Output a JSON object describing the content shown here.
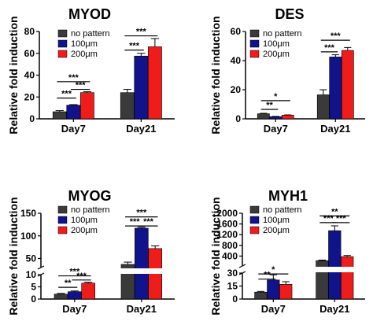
{
  "legend_labels": [
    "no pattern",
    "100μm",
    "200μm"
  ],
  "colors": {
    "no pattern": "#3a3a3a",
    "100um": "#10138a",
    "200um": "#ef1c1c",
    "axis": "#000000"
  },
  "chart_data": [
    {
      "type": "bar",
      "title": "MYOD",
      "ylabel": "Relative fold induction",
      "categories": [
        "Day7",
        "Day21"
      ],
      "ylim": [
        0,
        80
      ],
      "yticks": [
        "0",
        "20",
        "40",
        "60",
        "80"
      ],
      "ytick_values": [
        0,
        20,
        40,
        60,
        80
      ],
      "legend_position": "top-left",
      "series": [
        {
          "name": "no pattern",
          "values": [
            6.5,
            24
          ],
          "errors": [
            1,
            3
          ]
        },
        {
          "name": "100μm",
          "values": [
            12.5,
            57.5
          ],
          "errors": [
            0.5,
            2.5
          ]
        },
        {
          "name": "200μm",
          "values": [
            24,
            66
          ],
          "errors": [
            0.8,
            7.5
          ]
        }
      ],
      "significance": [
        {
          "cat": 0,
          "from": 0,
          "to": 1,
          "y": 19,
          "label": "***"
        },
        {
          "cat": 0,
          "from": 0,
          "to": 2,
          "y": 34,
          "label": "***"
        },
        {
          "cat": 0,
          "from": 1,
          "to": 2,
          "y": 27,
          "label": "***"
        },
        {
          "cat": 1,
          "from": 0,
          "to": 1,
          "y": 63,
          "label": "***"
        },
        {
          "cat": 1,
          "from": 0,
          "to": 2,
          "y": 76,
          "label": "***"
        }
      ]
    },
    {
      "type": "bar",
      "title": "DES",
      "ylabel": "Relative fold induction",
      "categories": [
        "Day7",
        "Day21"
      ],
      "ylim": [
        0,
        60
      ],
      "yticks": [
        "0",
        "20",
        "40",
        "60"
      ],
      "ytick_values": [
        0,
        20,
        40,
        60
      ],
      "legend_position": "top-left",
      "series": [
        {
          "name": "no pattern",
          "values": [
            3.5,
            16.5
          ],
          "errors": [
            0.3,
            3.5
          ]
        },
        {
          "name": "100μm",
          "values": [
            1.5,
            42.5
          ],
          "errors": [
            0.2,
            1.5
          ]
        },
        {
          "name": "200μm",
          "values": [
            2.5,
            47
          ],
          "errors": [
            0.2,
            2
          ]
        }
      ],
      "significance": [
        {
          "cat": 0,
          "from": 0,
          "to": 1,
          "y": 6.5,
          "label": "**"
        },
        {
          "cat": 0,
          "from": 0,
          "to": 2,
          "y": 12.5,
          "label": "*"
        },
        {
          "cat": 1,
          "from": 0,
          "to": 1,
          "y": 46,
          "label": "***"
        },
        {
          "cat": 1,
          "from": 0,
          "to": 2,
          "y": 54,
          "label": "***"
        }
      ]
    },
    {
      "type": "bar",
      "title": "MYOG",
      "ylabel": "Relative fold induction",
      "categories": [
        "Day7",
        "Day21"
      ],
      "broken_axis": {
        "lower_max": 10,
        "upper_min": 30,
        "upper_max": 150
      },
      "yticks_lower": [
        "0",
        "5",
        "10"
      ],
      "ytick_values_lower": [
        0,
        5,
        10
      ],
      "yticks_upper": [
        "50",
        "100",
        "150"
      ],
      "ytick_values_upper": [
        50,
        100,
        150
      ],
      "legend_position": "top-left",
      "series": [
        {
          "name": "no pattern",
          "values": [
            2,
            37
          ],
          "errors": [
            0.3,
            5
          ]
        },
        {
          "name": "100μm",
          "values": [
            3,
            117
          ],
          "errors": [
            0.3,
            2
          ]
        },
        {
          "name": "200μm",
          "values": [
            6.5,
            72
          ],
          "errors": [
            0.4,
            6
          ]
        }
      ],
      "significance": [
        {
          "cat": 0,
          "from": 0,
          "to": 1,
          "y": 4.8,
          "label": "**"
        },
        {
          "cat": 0,
          "from": 0,
          "to": 2,
          "y": 9.5,
          "label": "***"
        },
        {
          "cat": 0,
          "from": 1,
          "to": 2,
          "y": 7.8,
          "label": "***"
        },
        {
          "cat": 1,
          "from": 0,
          "to": 1,
          "y": 122,
          "label": "***"
        },
        {
          "cat": 1,
          "from": 1,
          "to": 2,
          "y": 122,
          "label": "***"
        },
        {
          "cat": 1,
          "from": 0,
          "to": 2,
          "y": 142,
          "label": "***"
        }
      ]
    },
    {
      "type": "bar",
      "title": "MYH1",
      "ylabel": "Relative fold induction",
      "categories": [
        "Day7",
        "Day21"
      ],
      "broken_axis": {
        "lower_max": 30,
        "upper_min": 30,
        "upper_max": 2000
      },
      "yticks_lower": [
        "0",
        "15",
        "30"
      ],
      "ytick_values_lower": [
        0,
        15,
        30
      ],
      "yticks_upper": [
        "400",
        "800",
        "1200",
        "1600",
        "2000"
      ],
      "ytick_values_upper": [
        400,
        800,
        1200,
        1600,
        2000
      ],
      "legend_position": "top-left",
      "series": [
        {
          "name": "no pattern",
          "values": [
            8,
            230
          ],
          "errors": [
            0.8,
            20
          ]
        },
        {
          "name": "100μm",
          "values": [
            22,
            1350
          ],
          "errors": [
            6,
            180
          ]
        },
        {
          "name": "200μm",
          "values": [
            17,
            380
          ],
          "errors": [
            3,
            40
          ]
        }
      ],
      "significance": [
        {
          "cat": 0,
          "from": 0,
          "to": 1,
          "y": 23,
          "label": "**"
        },
        {
          "cat": 0,
          "from": 0,
          "to": 2,
          "y": 29,
          "label": "*"
        },
        {
          "cat": 1,
          "from": 0,
          "to": 1,
          "y": 1650,
          "label": "***"
        },
        {
          "cat": 1,
          "from": 1,
          "to": 2,
          "y": 1650,
          "label": "***"
        },
        {
          "cat": 1,
          "from": 0,
          "to": 2,
          "y": 1900,
          "label": "**"
        }
      ]
    }
  ]
}
